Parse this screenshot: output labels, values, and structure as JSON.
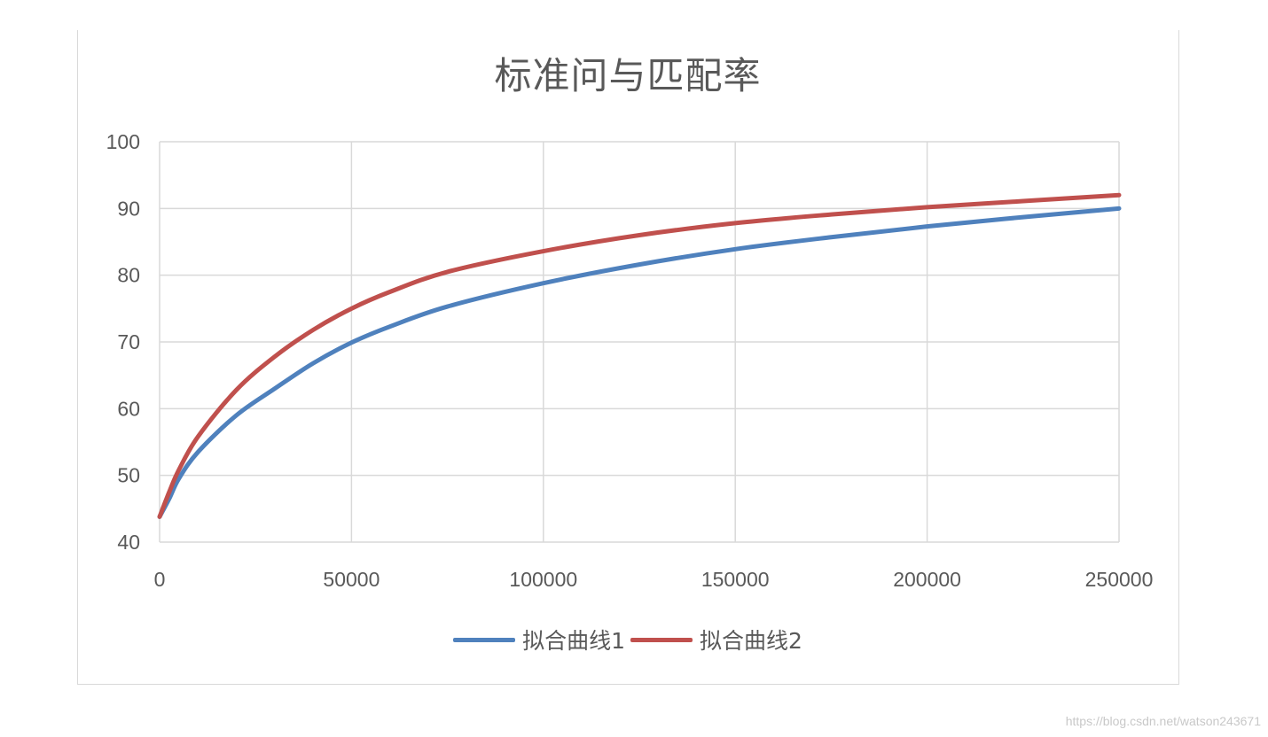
{
  "chart_data": {
    "type": "line",
    "title": "标准问与匹配率",
    "xlabel": "",
    "ylabel": "",
    "xlim": [
      0,
      250000
    ],
    "ylim": [
      40,
      100
    ],
    "x_ticks": [
      "0",
      "50000",
      "100000",
      "150000",
      "200000",
      "250000"
    ],
    "y_ticks": [
      "40",
      "50",
      "60",
      "70",
      "80",
      "90",
      "100"
    ],
    "grid": true,
    "legend_position": "bottom",
    "series": [
      {
        "name": "拟合曲线1",
        "color": "#4f81bd",
        "x": [
          1,
          2500,
          5000,
          10000,
          20000,
          30000,
          40000,
          50000,
          60000,
          75000,
          100000,
          125000,
          150000,
          175000,
          200000,
          225000,
          250000
        ],
        "y": [
          43.8,
          46.5,
          49.5,
          53.5,
          59.0,
          63.0,
          66.8,
          69.9,
          72.3,
          75.3,
          78.8,
          81.6,
          83.9,
          85.7,
          87.3,
          88.7,
          90.0
        ]
      },
      {
        "name": "拟合曲线2",
        "color": "#c0504d",
        "x": [
          1,
          2500,
          5000,
          10000,
          20000,
          30000,
          40000,
          50000,
          60000,
          75000,
          100000,
          125000,
          150000,
          175000,
          200000,
          225000,
          250000
        ],
        "y": [
          43.8,
          47.5,
          50.8,
          55.8,
          62.8,
          67.8,
          71.8,
          75.0,
          77.5,
          80.5,
          83.6,
          86.0,
          87.8,
          89.1,
          90.2,
          91.1,
          92.0
        ]
      }
    ]
  },
  "watermark": "https://blog.csdn.net/watson243671"
}
